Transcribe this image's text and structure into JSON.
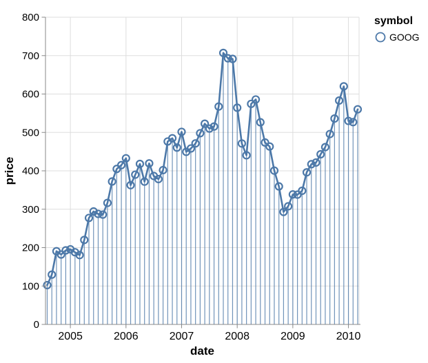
{
  "chart_data": {
    "type": "line",
    "mark": "line+point+stem",
    "title": "",
    "xlabel": "date",
    "ylabel": "price",
    "ylim": [
      0,
      800
    ],
    "grid": true,
    "y_ticks": [
      0,
      100,
      200,
      300,
      400,
      500,
      600,
      700,
      800
    ],
    "x_ticks": [
      "2005",
      "2006",
      "2007",
      "2008",
      "2009",
      "2010"
    ],
    "legend": {
      "title": "symbol",
      "position": "top-right",
      "items": [
        {
          "label": "GOOG",
          "color": "#4c78a8"
        }
      ]
    },
    "colors": {
      "series": "#4c78a8",
      "grid": "#dddddd",
      "axis": "#888888",
      "tick_label": "#000000"
    },
    "series": [
      {
        "name": "GOOG",
        "x": [
          "2004-08",
          "2004-09",
          "2004-10",
          "2004-11",
          "2004-12",
          "2005-01",
          "2005-02",
          "2005-03",
          "2005-04",
          "2005-05",
          "2005-06",
          "2005-07",
          "2005-08",
          "2005-09",
          "2005-10",
          "2005-11",
          "2005-12",
          "2006-01",
          "2006-02",
          "2006-03",
          "2006-04",
          "2006-05",
          "2006-06",
          "2006-07",
          "2006-08",
          "2006-09",
          "2006-10",
          "2006-11",
          "2006-12",
          "2007-01",
          "2007-02",
          "2007-03",
          "2007-04",
          "2007-05",
          "2007-06",
          "2007-07",
          "2007-08",
          "2007-09",
          "2007-10",
          "2007-11",
          "2007-12",
          "2008-01",
          "2008-02",
          "2008-03",
          "2008-04",
          "2008-05",
          "2008-06",
          "2008-07",
          "2008-08",
          "2008-09",
          "2008-10",
          "2008-11",
          "2008-12",
          "2009-01",
          "2009-02",
          "2009-03",
          "2009-04",
          "2009-05",
          "2009-06",
          "2009-07",
          "2009-08",
          "2009-09",
          "2009-10",
          "2009-11",
          "2009-12",
          "2010-01",
          "2010-02",
          "2010-03"
        ],
        "values": [
          102.37,
          129.6,
          190.64,
          181.98,
          192.79,
          195.62,
          187.99,
          180.51,
          220,
          277.27,
          294.15,
          287.76,
          286,
          316.46,
          372.14,
          404.91,
          414.86,
          432.66,
          362.62,
          390,
          417.94,
          371.82,
          419.33,
          386.6,
          378.53,
          401.9,
          476.39,
          484.81,
          460.48,
          501.5,
          449.45,
          458.16,
          471.38,
          497.91,
          522.7,
          510,
          515.25,
          567.27,
          707,
          693,
          691.48,
          564.3,
          471.18,
          440.47,
          574.29,
          585.8,
          526.42,
          473.75,
          463.29,
          400.52,
          359.36,
          292.96,
          307.65,
          338.53,
          337.99,
          348.06,
          395.97,
          417.23,
          421.59,
          443.05,
          461.67,
          495.85,
          536.12,
          583,
          619.98,
          529.94,
          526.8,
          560.19
        ]
      }
    ]
  }
}
